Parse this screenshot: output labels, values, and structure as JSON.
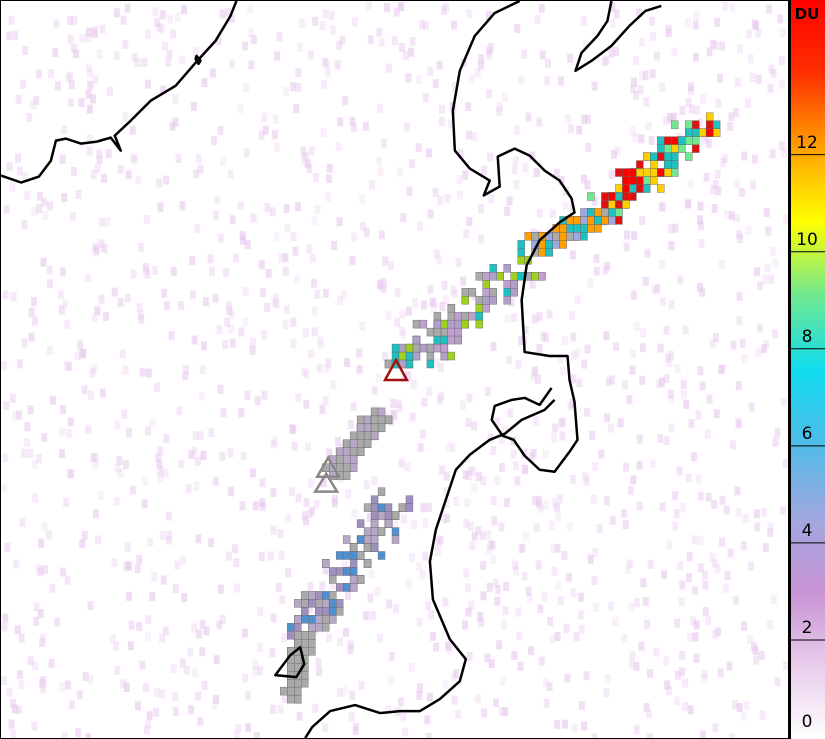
{
  "colorbar": {
    "unit": "DU",
    "ticks": [
      "0",
      "2",
      "4",
      "6",
      "8",
      "10",
      "12"
    ],
    "range": [
      0,
      15
    ],
    "colors": [
      "#ffffff",
      "#e8cceb",
      "#c893d4",
      "#a0a8e0",
      "#4fbbe8",
      "#10dcee",
      "#70e890",
      "#ffff00",
      "#ffa000",
      "#ff3000",
      "#ff0000"
    ]
  },
  "map": {
    "coastline_color": "#000000",
    "background_noise_color": "#e8c8ee",
    "volcanoes": [
      {
        "name": "active",
        "color": "#a01010"
      },
      {
        "name": "inactive-1",
        "color": "#888888"
      },
      {
        "name": "inactive-2",
        "color": "#888888"
      }
    ]
  }
}
